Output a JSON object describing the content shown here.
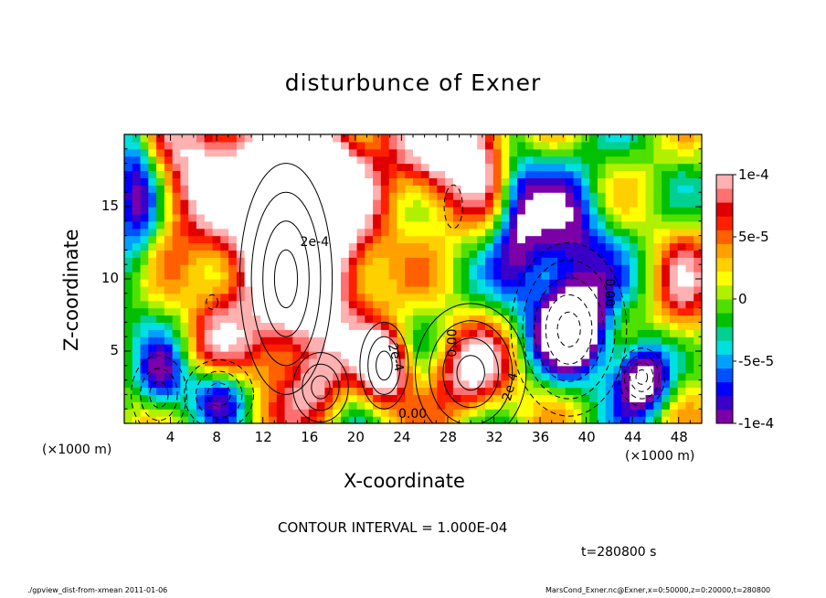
{
  "chart_data": {
    "type": "heatmap",
    "title": "disturbunce of Exner",
    "xlabel": "X-coordinate",
    "ylabel": "Z-coordinate",
    "x_unit": "(×1000 m)",
    "y_unit": "(×1000 m)",
    "xlim": [
      0,
      50
    ],
    "ylim": [
      0,
      20
    ],
    "x_ticks": [
      4,
      8,
      12,
      16,
      20,
      24,
      28,
      32,
      36,
      40,
      44,
      48
    ],
    "y_ticks": [
      5,
      10,
      15
    ],
    "colorbar": {
      "range": [
        -0.0001,
        0.0001
      ],
      "tick_values": [
        0.0001,
        5e-05,
        0,
        -5e-05,
        -0.0001
      ],
      "tick_labels": [
        "1e-4",
        "5e-5",
        "0",
        "-5e-5",
        "-1e-4"
      ]
    },
    "contour_labels": [
      "2e-4",
      "0.00",
      "2e-4",
      "0.00",
      "2e-4",
      "0.00"
    ],
    "contour_interval_text": "CONTOUR INTERVAL = 1.000E-04",
    "time_text": "t=280800 s"
  },
  "footer": {
    "left": "./gpview_dist-from-xmean  2011-01-06",
    "right": "MarsCond_Exner.nc@Exner,x=0:50000,z=0:20000,t=280800"
  },
  "colors": {
    "palette": [
      "#7b00a8",
      "#3a00c8",
      "#0000ff",
      "#0050ff",
      "#00a0ff",
      "#00e0e0",
      "#00d090",
      "#00c000",
      "#50e000",
      "#b0f000",
      "#ffff00",
      "#ffd000",
      "#ffa000",
      "#ff6000",
      "#ff2000",
      "#e00000",
      "#ff7070",
      "#ffb0b0"
    ]
  }
}
